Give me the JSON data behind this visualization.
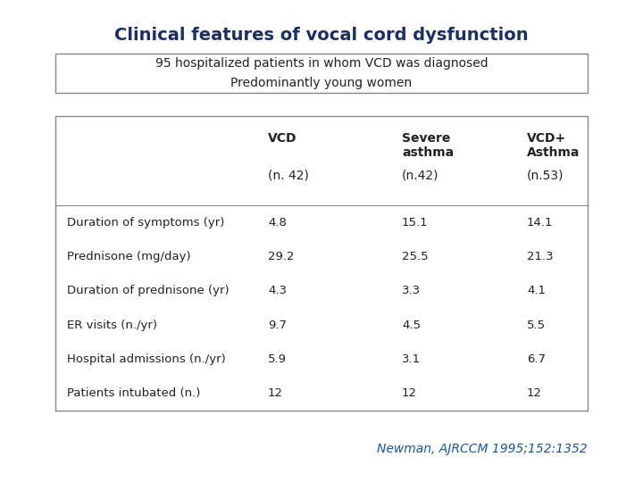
{
  "title": "Clinical features of vocal cord dysfunction",
  "title_color": "#1a3060",
  "title_fontsize": 14,
  "subtitle_box_text": "95 hospitalized patients in whom VCD was diagnosed\nPredominantly young women",
  "col_headers_line1": [
    "",
    "VCD",
    "Severe",
    "VCD+"
  ],
  "col_headers_line2": [
    "",
    "",
    "asthma",
    "Asthma"
  ],
  "col_headers_line3": [
    "",
    "(n. 42)",
    "(n.42)",
    "(n.53)"
  ],
  "row_labels": [
    "Duration of symptoms (yr)",
    "Prednisone (mg/day)",
    "Duration of prednisone (yr)",
    "ER visits (n./yr)",
    "Hospital admissions (n./yr)",
    "Patients intubated (n.)"
  ],
  "data": [
    [
      "4.8",
      "15.1",
      "14.1"
    ],
    [
      "29.2",
      "25.5",
      "21.3"
    ],
    [
      "4.3",
      "3.3",
      "4.1"
    ],
    [
      "9.7",
      "4.5",
      "5.5"
    ],
    [
      "5.9",
      "3.1",
      "6.7"
    ],
    [
      "12",
      "12",
      "12"
    ]
  ],
  "citation": "Newman, AJRCCM 1995;152:1352",
  "citation_color": "#1a5799",
  "bg_color": "#ffffff",
  "text_color": "#222222",
  "border_color": "#888888"
}
